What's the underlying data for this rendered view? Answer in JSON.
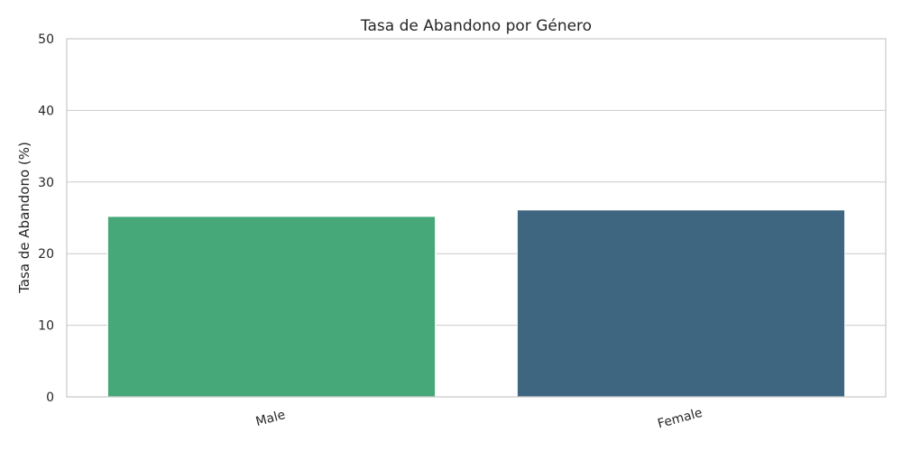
{
  "chart_data": {
    "type": "bar",
    "title": "Tasa de Abandono por Género",
    "xlabel": "",
    "ylabel": "Tasa de Abandono (%)",
    "categories": [
      "Male",
      "Female"
    ],
    "values": [
      25.2,
      26.1
    ],
    "ylim": [
      0,
      50
    ],
    "yticks": [
      "0",
      "10",
      "20",
      "30",
      "40",
      "50"
    ],
    "grid": "horizontal",
    "colors": [
      "#46a878",
      "#3e6681"
    ]
  }
}
